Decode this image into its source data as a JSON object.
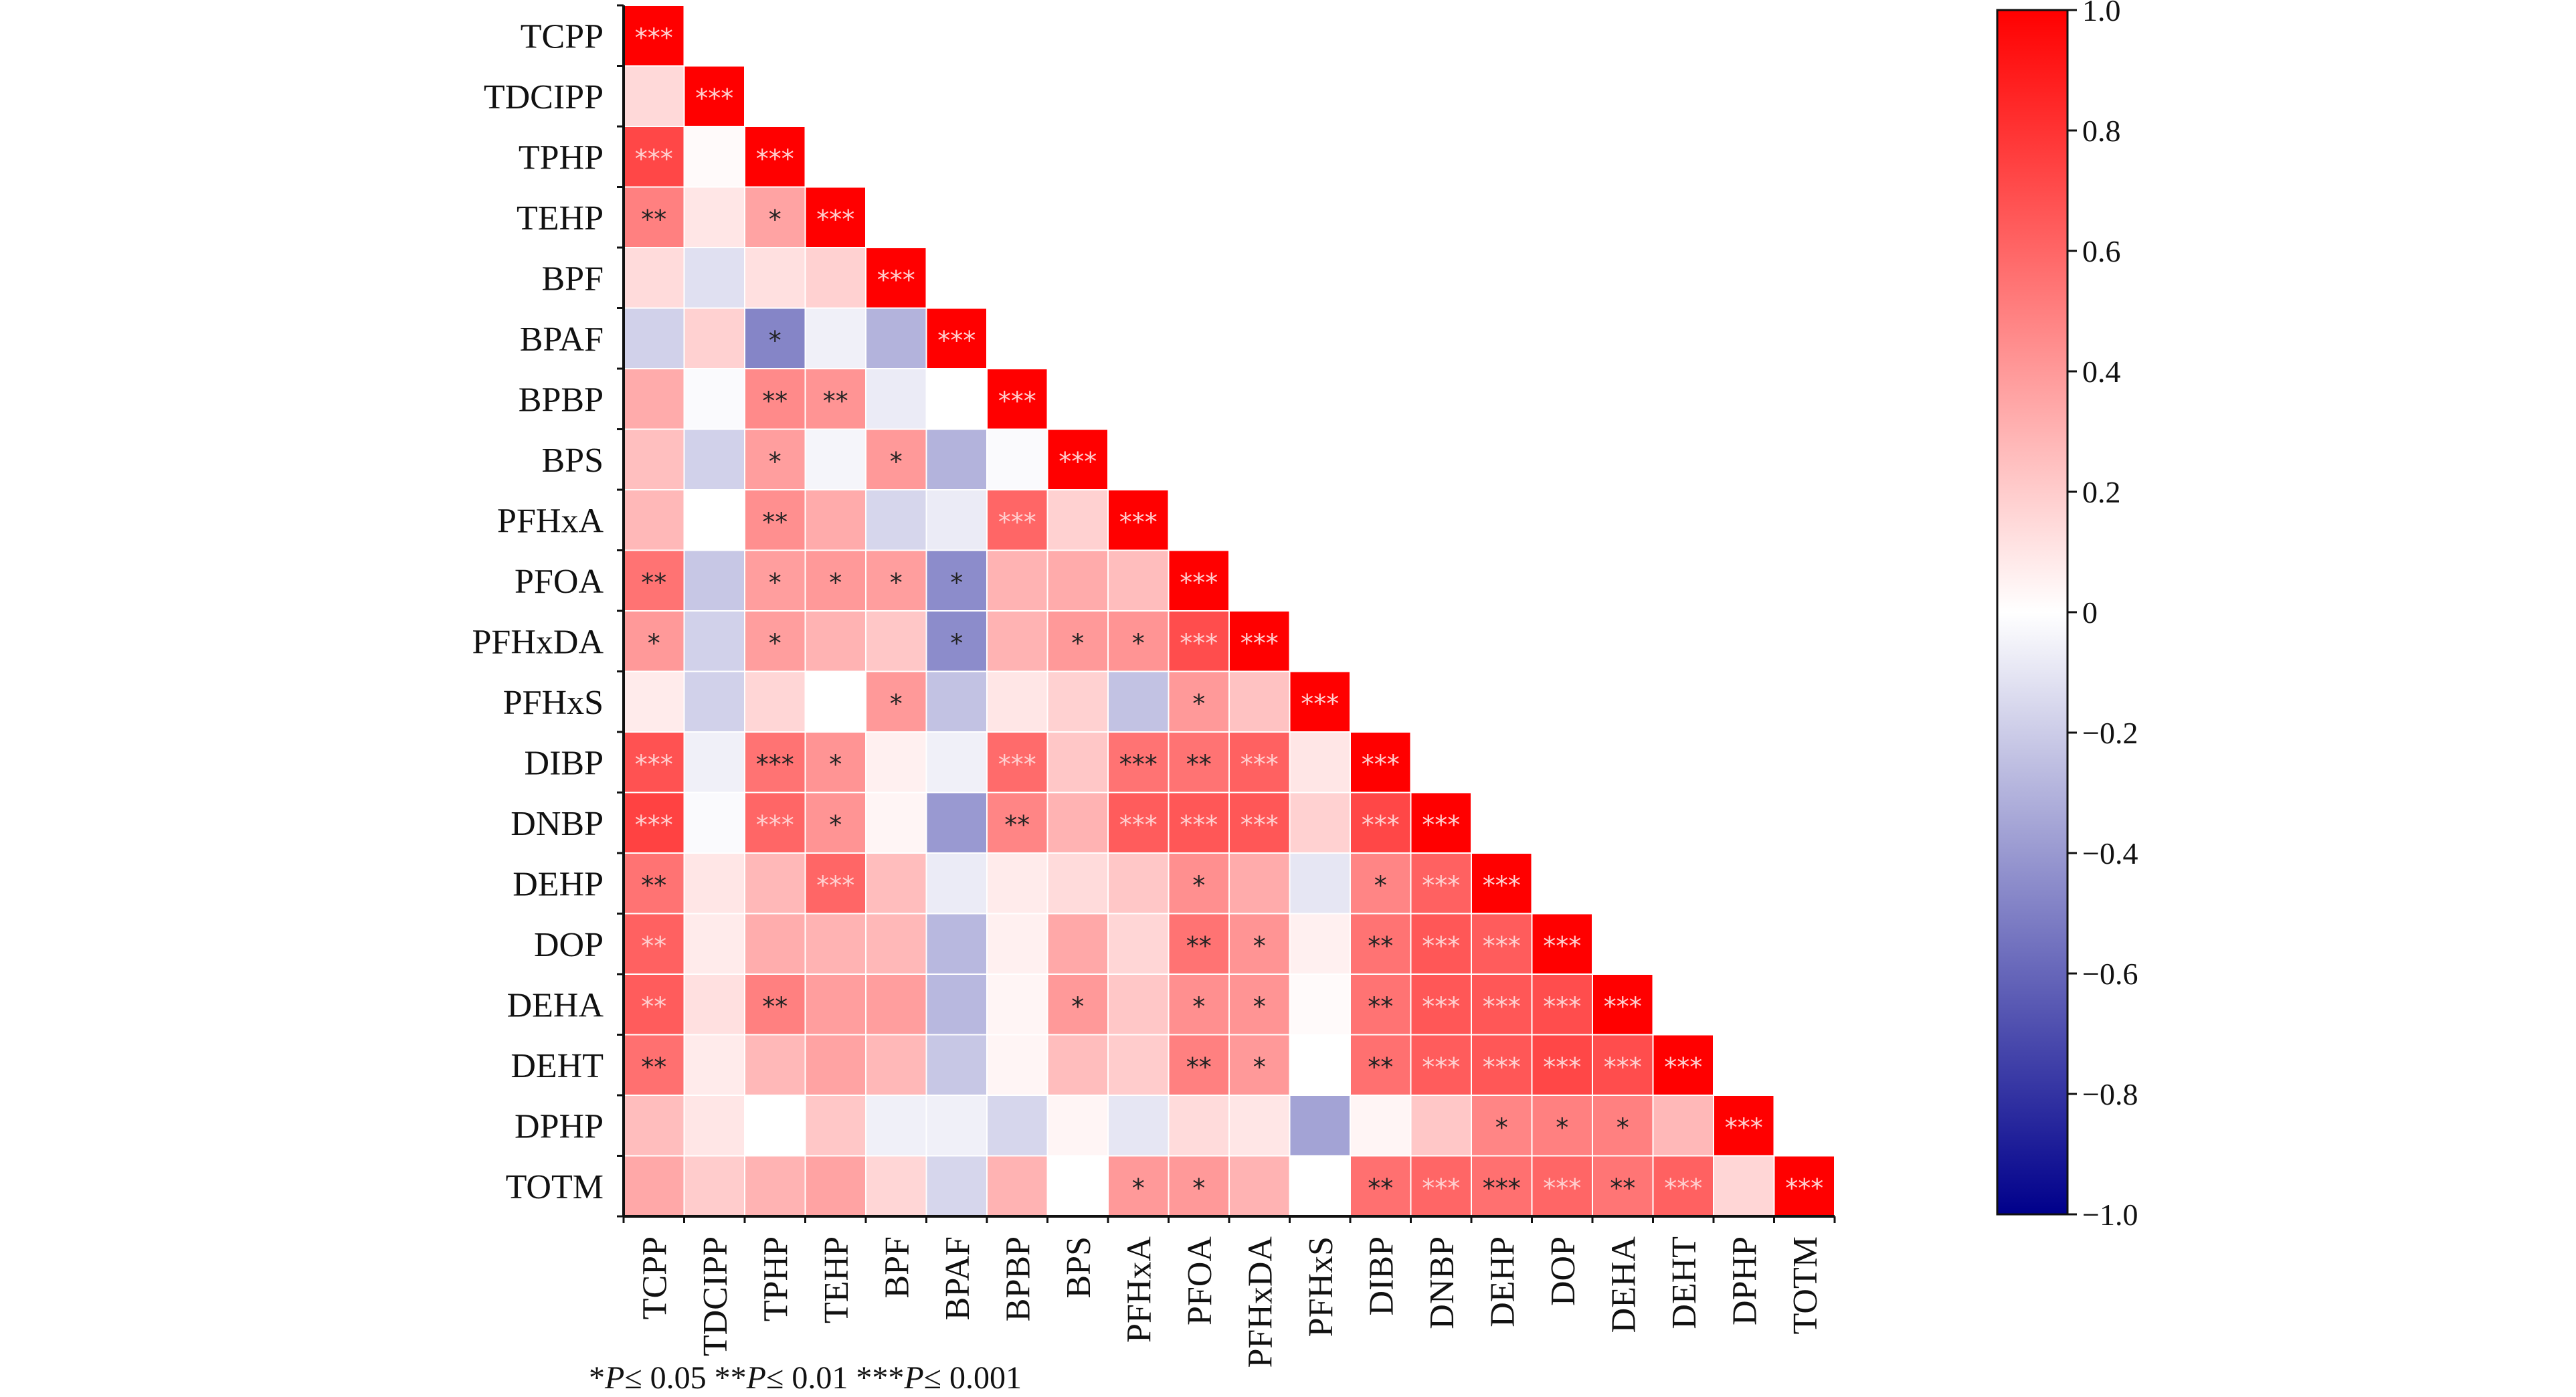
{
  "chart_data": {
    "type": "heatmap",
    "title": "",
    "variables": [
      "TCPP",
      "TDCIPP",
      "TPHP",
      "TEHP",
      "BPF",
      "BPAF",
      "BPBP",
      "BPS",
      "PFHxA",
      "PFOA",
      "PFHxDA",
      "PFHxS",
      "DIBP",
      "DNBP",
      "DEHP",
      "DOP",
      "DEHA",
      "DEHT",
      "DPHP",
      "TOTM"
    ],
    "matrix": [
      [
        1.0
      ],
      [
        0.15,
        1.0
      ],
      [
        0.72,
        0.02,
        1.0
      ],
      [
        0.5,
        0.1,
        0.36,
        1.0
      ],
      [
        0.14,
        -0.12,
        0.12,
        0.18,
        1.0
      ],
      [
        -0.18,
        0.18,
        -0.48,
        -0.06,
        -0.3,
        1.0
      ],
      [
        0.33,
        -0.02,
        0.46,
        0.42,
        -0.08,
        0.0,
        1.0
      ],
      [
        0.25,
        -0.18,
        0.38,
        -0.04,
        0.4,
        -0.3,
        -0.02,
        1.0
      ],
      [
        0.28,
        0.0,
        0.44,
        0.33,
        -0.16,
        -0.08,
        0.6,
        0.18,
        1.0
      ],
      [
        0.55,
        -0.22,
        0.38,
        0.4,
        0.38,
        -0.45,
        0.3,
        0.33,
        0.26,
        1.0
      ],
      [
        0.4,
        -0.18,
        0.38,
        0.3,
        0.22,
        -0.45,
        0.3,
        0.4,
        0.42,
        0.7,
        1.0
      ],
      [
        0.08,
        -0.18,
        0.16,
        0.0,
        0.4,
        -0.24,
        0.1,
        0.18,
        -0.24,
        0.4,
        0.24,
        1.0
      ],
      [
        0.68,
        -0.06,
        0.55,
        0.42,
        0.06,
        -0.06,
        0.58,
        0.22,
        0.55,
        0.55,
        0.62,
        0.1,
        1.0
      ],
      [
        0.74,
        -0.02,
        0.6,
        0.42,
        0.04,
        -0.4,
        0.48,
        0.3,
        0.64,
        0.66,
        0.66,
        0.18,
        0.72,
        1.0
      ],
      [
        0.55,
        0.1,
        0.28,
        0.6,
        0.26,
        -0.08,
        0.08,
        0.14,
        0.22,
        0.44,
        0.33,
        -0.1,
        0.48,
        0.62,
        1.0
      ],
      [
        0.62,
        0.08,
        0.32,
        0.3,
        0.28,
        -0.28,
        0.06,
        0.34,
        0.16,
        0.55,
        0.42,
        0.06,
        0.55,
        0.66,
        0.64,
        1.0
      ],
      [
        0.64,
        0.12,
        0.5,
        0.38,
        0.38,
        -0.28,
        0.04,
        0.4,
        0.22,
        0.44,
        0.42,
        0.02,
        0.55,
        0.66,
        0.66,
        0.7,
        1.0
      ],
      [
        0.56,
        0.08,
        0.28,
        0.36,
        0.28,
        -0.22,
        0.04,
        0.26,
        0.2,
        0.5,
        0.4,
        0.0,
        0.56,
        0.64,
        0.66,
        0.72,
        0.7,
        1.0
      ],
      [
        0.26,
        0.1,
        0.0,
        0.22,
        -0.06,
        -0.06,
        -0.16,
        0.04,
        -0.1,
        0.14,
        0.1,
        -0.36,
        0.04,
        0.22,
        0.48,
        0.5,
        0.5,
        0.28,
        1.0
      ],
      [
        0.34,
        0.2,
        0.3,
        0.36,
        0.16,
        -0.16,
        0.3,
        0.0,
        0.4,
        0.4,
        0.3,
        0.0,
        0.56,
        0.6,
        0.56,
        0.6,
        0.54,
        0.62,
        0.16,
        1.0
      ]
    ],
    "significance": [
      [
        "***"
      ],
      [
        "",
        "***"
      ],
      [
        "***",
        "",
        "***"
      ],
      [
        "**",
        "",
        "*",
        "***"
      ],
      [
        "",
        "",
        "",
        "",
        "***"
      ],
      [
        "",
        "",
        "*",
        "",
        "",
        "***"
      ],
      [
        "",
        "",
        "**",
        "**",
        "",
        "",
        "***"
      ],
      [
        "",
        "",
        "*",
        "",
        "*",
        "",
        "",
        "***"
      ],
      [
        "",
        "",
        "**",
        "",
        "",
        "",
        "***",
        "",
        "***"
      ],
      [
        "**",
        "",
        "*",
        "*",
        "*",
        "*",
        "",
        "",
        "",
        "***"
      ],
      [
        "*",
        "",
        "*",
        "",
        "",
        "*",
        "",
        "*",
        "*",
        "***",
        "***"
      ],
      [
        "",
        "",
        "",
        "",
        "*",
        "",
        "",
        "",
        "",
        "*",
        "",
        "***"
      ],
      [
        "***",
        "",
        "***",
        "*",
        "",
        "",
        "***",
        "",
        "***",
        "**",
        "***",
        "",
        "***"
      ],
      [
        "***",
        "",
        "***",
        "*",
        "",
        "",
        "**",
        "",
        "***",
        "***",
        "***",
        "",
        "***",
        "***"
      ],
      [
        "**",
        "",
        "",
        "***",
        "",
        "",
        "",
        "",
        "",
        "*",
        "",
        "",
        "*",
        "***",
        "***"
      ],
      [
        "**",
        "",
        "",
        "",
        "",
        "",
        "",
        "",
        "",
        "**",
        "*",
        "",
        "**",
        "***",
        "***",
        "***"
      ],
      [
        "**",
        "",
        "**",
        "",
        "",
        "",
        "",
        "*",
        "",
        "*",
        "*",
        "",
        "**",
        "***",
        "***",
        "***",
        "***"
      ],
      [
        "**",
        "",
        "",
        "",
        "",
        "",
        "",
        "",
        "",
        "**",
        "*",
        "",
        "**",
        "***",
        "***",
        "***",
        "***",
        "***"
      ],
      [
        "",
        "",
        "",
        "",
        "",
        "",
        "",
        "",
        "",
        "",
        "",
        "",
        "",
        "",
        "*",
        "*",
        "*",
        "",
        "***"
      ],
      [
        "",
        "",
        "",
        "",
        "",
        "",
        "",
        "",
        "*",
        "*",
        "",
        "",
        "**",
        "***",
        "***",
        "***",
        "**",
        "***",
        "",
        "***"
      ]
    ],
    "star_color_light": [
      "#ffe0e0",
      "#ffe0e0",
      "#ffe0e0",
      "",
      "",
      "",
      "",
      "",
      "",
      "",
      "",
      "",
      "",
      "",
      "",
      "",
      "",
      "",
      ""
    ],
    "colorbar": {
      "vmin": -1.0,
      "vmax": 1.0,
      "tick_labels": [
        "1.0",
        "0.8",
        "0.6",
        "0.4",
        "0.2",
        "0",
        "−0.2",
        "−0.4",
        "−0.6",
        "−0.8",
        "−1.0"
      ],
      "tick_values": [
        1.0,
        0.8,
        0.6,
        0.4,
        0.2,
        0.0,
        -0.2,
        -0.4,
        -0.6,
        -0.8,
        -1.0
      ],
      "colors": {
        "negative": "#00008b",
        "mid": "#ffffff",
        "positive": "#ff0000"
      }
    },
    "legend_note": {
      "parts": [
        {
          "text": "*",
          "italic": false
        },
        {
          "text": "P",
          "italic": true
        },
        {
          "text": "≤ 0.05  **",
          "italic": false
        },
        {
          "text": "P",
          "italic": true
        },
        {
          "text": "≤ 0.01  ***",
          "italic": false
        },
        {
          "text": "P",
          "italic": true
        },
        {
          "text": "≤ 0.001",
          "italic": false
        }
      ]
    }
  }
}
